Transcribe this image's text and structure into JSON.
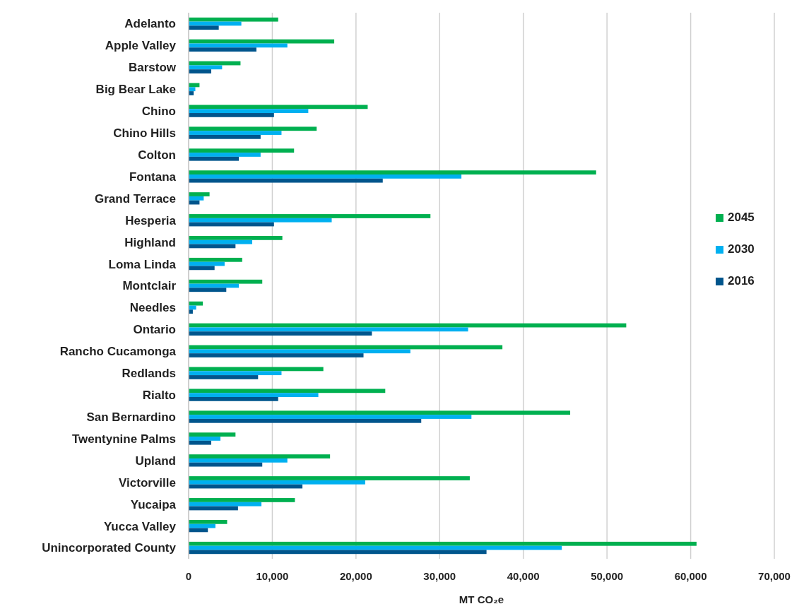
{
  "chart_data": {
    "type": "bar",
    "orientation": "horizontal",
    "xlabel": "MT CO₂e",
    "categories": [
      "Adelanto",
      "Apple Valley",
      "Barstow",
      "Big Bear Lake",
      "Chino",
      "Chino Hills",
      "Colton",
      "Fontana",
      "Grand Terrace",
      "Hesperia",
      "Highland",
      "Loma Linda",
      "Montclair",
      "Needles",
      "Ontario",
      "Rancho Cucamonga",
      "Redlands",
      "Rialto",
      "San Bernardino",
      "Twentynine Palms",
      "Upland",
      "Victorville",
      "Yucaipa",
      "Yucca Valley",
      "Unincorporated County"
    ],
    "series": [
      {
        "name": "2045",
        "color": "#00b050",
        "values": [
          10700,
          17400,
          6200,
          1300,
          21400,
          15300,
          12600,
          48700,
          2500,
          28900,
          11200,
          6400,
          8800,
          1700,
          52300,
          37500,
          16100,
          23500,
          45600,
          5600,
          16900,
          33600,
          12700,
          4600,
          60700
        ]
      },
      {
        "name": "2030",
        "color": "#00b0f0",
        "values": [
          6300,
          11800,
          4000,
          800,
          14300,
          11100,
          8600,
          32600,
          1800,
          17100,
          7600,
          4300,
          6000,
          900,
          33400,
          26500,
          11100,
          15500,
          33800,
          3800,
          11800,
          21100,
          8700,
          3200,
          44600
        ]
      },
      {
        "name": "2016",
        "color": "#00558c",
        "values": [
          3600,
          8100,
          2700,
          600,
          10200,
          8600,
          6000,
          23200,
          1300,
          10200,
          5600,
          3100,
          4500,
          500,
          21900,
          20900,
          8300,
          10700,
          27800,
          2700,
          8800,
          13600,
          5900,
          2300,
          35600
        ]
      }
    ],
    "xlim": [
      0,
      70000
    ],
    "xticks": [
      0,
      {
        "value": 10000,
        "label": "10,000"
      },
      {
        "value": 20000,
        "label": "20,000"
      },
      {
        "value": 30000,
        "label": "30,000"
      },
      {
        "value": 40000,
        "label": "40,000"
      },
      {
        "value": 50000,
        "label": "50,000"
      },
      {
        "value": 60000,
        "label": "60,000"
      },
      {
        "value": 70000,
        "label": "70,000"
      }
    ],
    "grid": "x",
    "legend": "right"
  }
}
